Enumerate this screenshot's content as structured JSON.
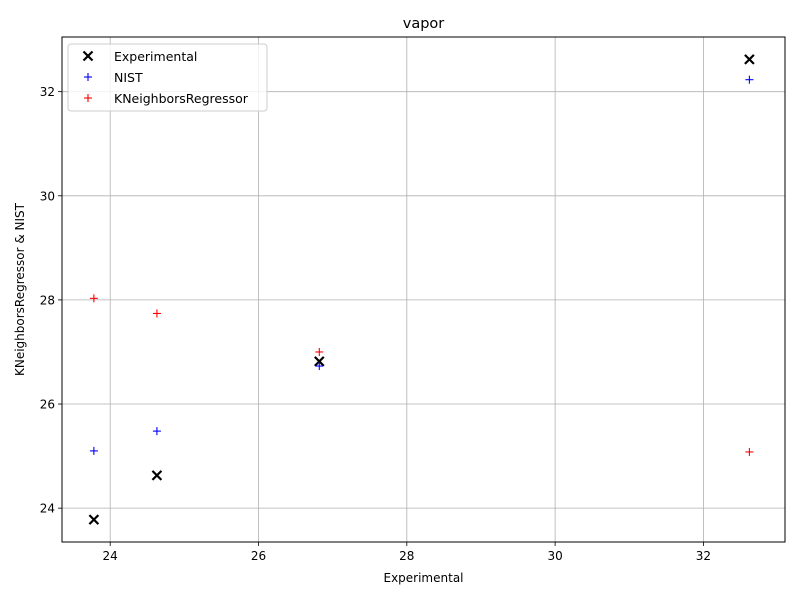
{
  "chart_data": {
    "type": "scatter",
    "title": "vapor",
    "xlabel": "Experimental",
    "ylabel": "KNeighborsRegressor & NIST",
    "xlim": [
      23.35,
      33.1
    ],
    "ylim": [
      23.35,
      33.05
    ],
    "xticks": [
      24,
      26,
      28,
      30,
      32
    ],
    "yticks": [
      24,
      26,
      28,
      30,
      32
    ],
    "grid": true,
    "legend_position": "upper-left",
    "series": [
      {
        "name": "Experimental",
        "marker": "x",
        "color": "#000000",
        "x": [
          23.78,
          24.63,
          26.82,
          32.62
        ],
        "y": [
          23.78,
          24.63,
          26.82,
          32.62
        ]
      },
      {
        "name": "NIST",
        "marker": "+",
        "color": "#0000ff",
        "x": [
          23.78,
          24.63,
          26.82,
          32.62
        ],
        "y": [
          25.1,
          25.48,
          26.73,
          32.23
        ]
      },
      {
        "name": "KNeighborsRegressor",
        "marker": "+",
        "color": "#ff0000",
        "x": [
          23.78,
          24.63,
          26.82,
          32.62
        ],
        "y": [
          28.03,
          27.74,
          27.0,
          25.08
        ]
      }
    ]
  }
}
